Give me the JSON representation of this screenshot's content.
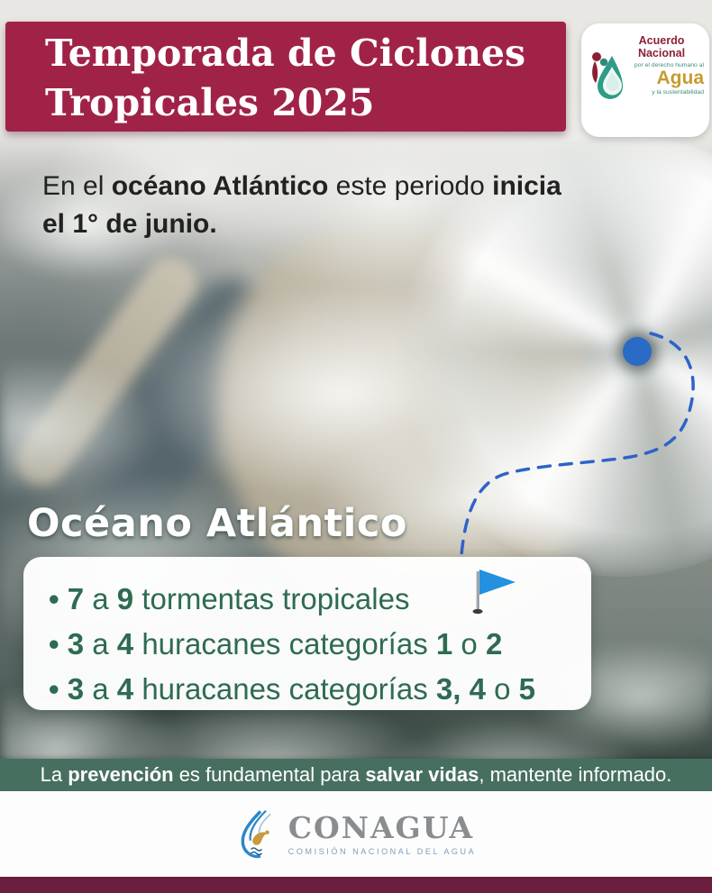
{
  "header": {
    "title_line1": "Temporada de Ciclones",
    "title_line2": "Tropicales 2025",
    "logo": {
      "line1": "Acuerdo Nacional",
      "line2": "por el derecho humano al",
      "line3": "Agua",
      "line4": "y la sustentabilidad",
      "icon": "water-drop-logo-icon"
    }
  },
  "intro": {
    "line1": [
      {
        "t": "En el ",
        "b": false
      },
      {
        "t": "océano Atlántico",
        "b": true
      },
      {
        "t": " este periodo ",
        "b": false
      },
      {
        "t": "inicia",
        "b": true
      }
    ],
    "line2": [
      {
        "t": "el 1° de junio.",
        "b": true
      }
    ]
  },
  "section": {
    "heading": "Océano Atlántico",
    "flag_icon": "blue-pennant-flag",
    "bullets": [
      {
        "segments": [
          {
            "t": "• ",
            "b": true
          },
          {
            "t": "7",
            "b": true
          },
          {
            "t": " a ",
            "b": false
          },
          {
            "t": "9",
            "b": true
          },
          {
            "t": " tormentas tropicales",
            "b": false
          }
        ]
      },
      {
        "segments": [
          {
            "t": "• ",
            "b": true
          },
          {
            "t": "3",
            "b": true
          },
          {
            "t": " a ",
            "b": false
          },
          {
            "t": "4",
            "b": true
          },
          {
            "t": " huracanes categorías ",
            "b": false
          },
          {
            "t": "1",
            "b": true
          },
          {
            "t": " o ",
            "b": false
          },
          {
            "t": "2",
            "b": true
          }
        ]
      },
      {
        "segments": [
          {
            "t": "• ",
            "b": true
          },
          {
            "t": "3",
            "b": true
          },
          {
            "t": " a ",
            "b": false
          },
          {
            "t": "4",
            "b": true
          },
          {
            "t": " huracanes categorías ",
            "b": false
          },
          {
            "t": "3, 4",
            "b": true
          },
          {
            "t": " o ",
            "b": false
          },
          {
            "t": "5",
            "b": true
          }
        ]
      }
    ]
  },
  "map": {
    "hurricane_icon": "hurricane-swirl",
    "track_icon": "dashed-cyclone-track",
    "eye_icon": "cyclone-position-dot"
  },
  "footer_banner": {
    "segments": [
      {
        "t": "La ",
        "b": false
      },
      {
        "t": "prevención",
        "b": true
      },
      {
        "t": " es fundamental para ",
        "b": false
      },
      {
        "t": "salvar vidas",
        "b": true
      },
      {
        "t": ", mantente informado.",
        "b": false
      }
    ]
  },
  "footer": {
    "brand": "CONAGUA",
    "brand_sub": "COMISIÓN NACIONAL DEL AGUA",
    "brand_icon": "conagua-water-eagle-icon"
  },
  "colors": {
    "maroon": "#A02347",
    "maroon_dark": "#6B1E3F",
    "banner_green": "#476F60",
    "forecast_green": "#2E6B51",
    "ink": "#222220",
    "gold": "#C59C2F",
    "teal": "#3D8C7C",
    "logo_maroon": "#8C2033",
    "track_blue": "#2F63C8",
    "dot_blue": "#2A6BC6",
    "flag_blue": "#2391E0",
    "conagua_gray": "#8A8D90",
    "conagua_blue": "#2B87C8",
    "conagua_sub": "#7F9EB8"
  }
}
